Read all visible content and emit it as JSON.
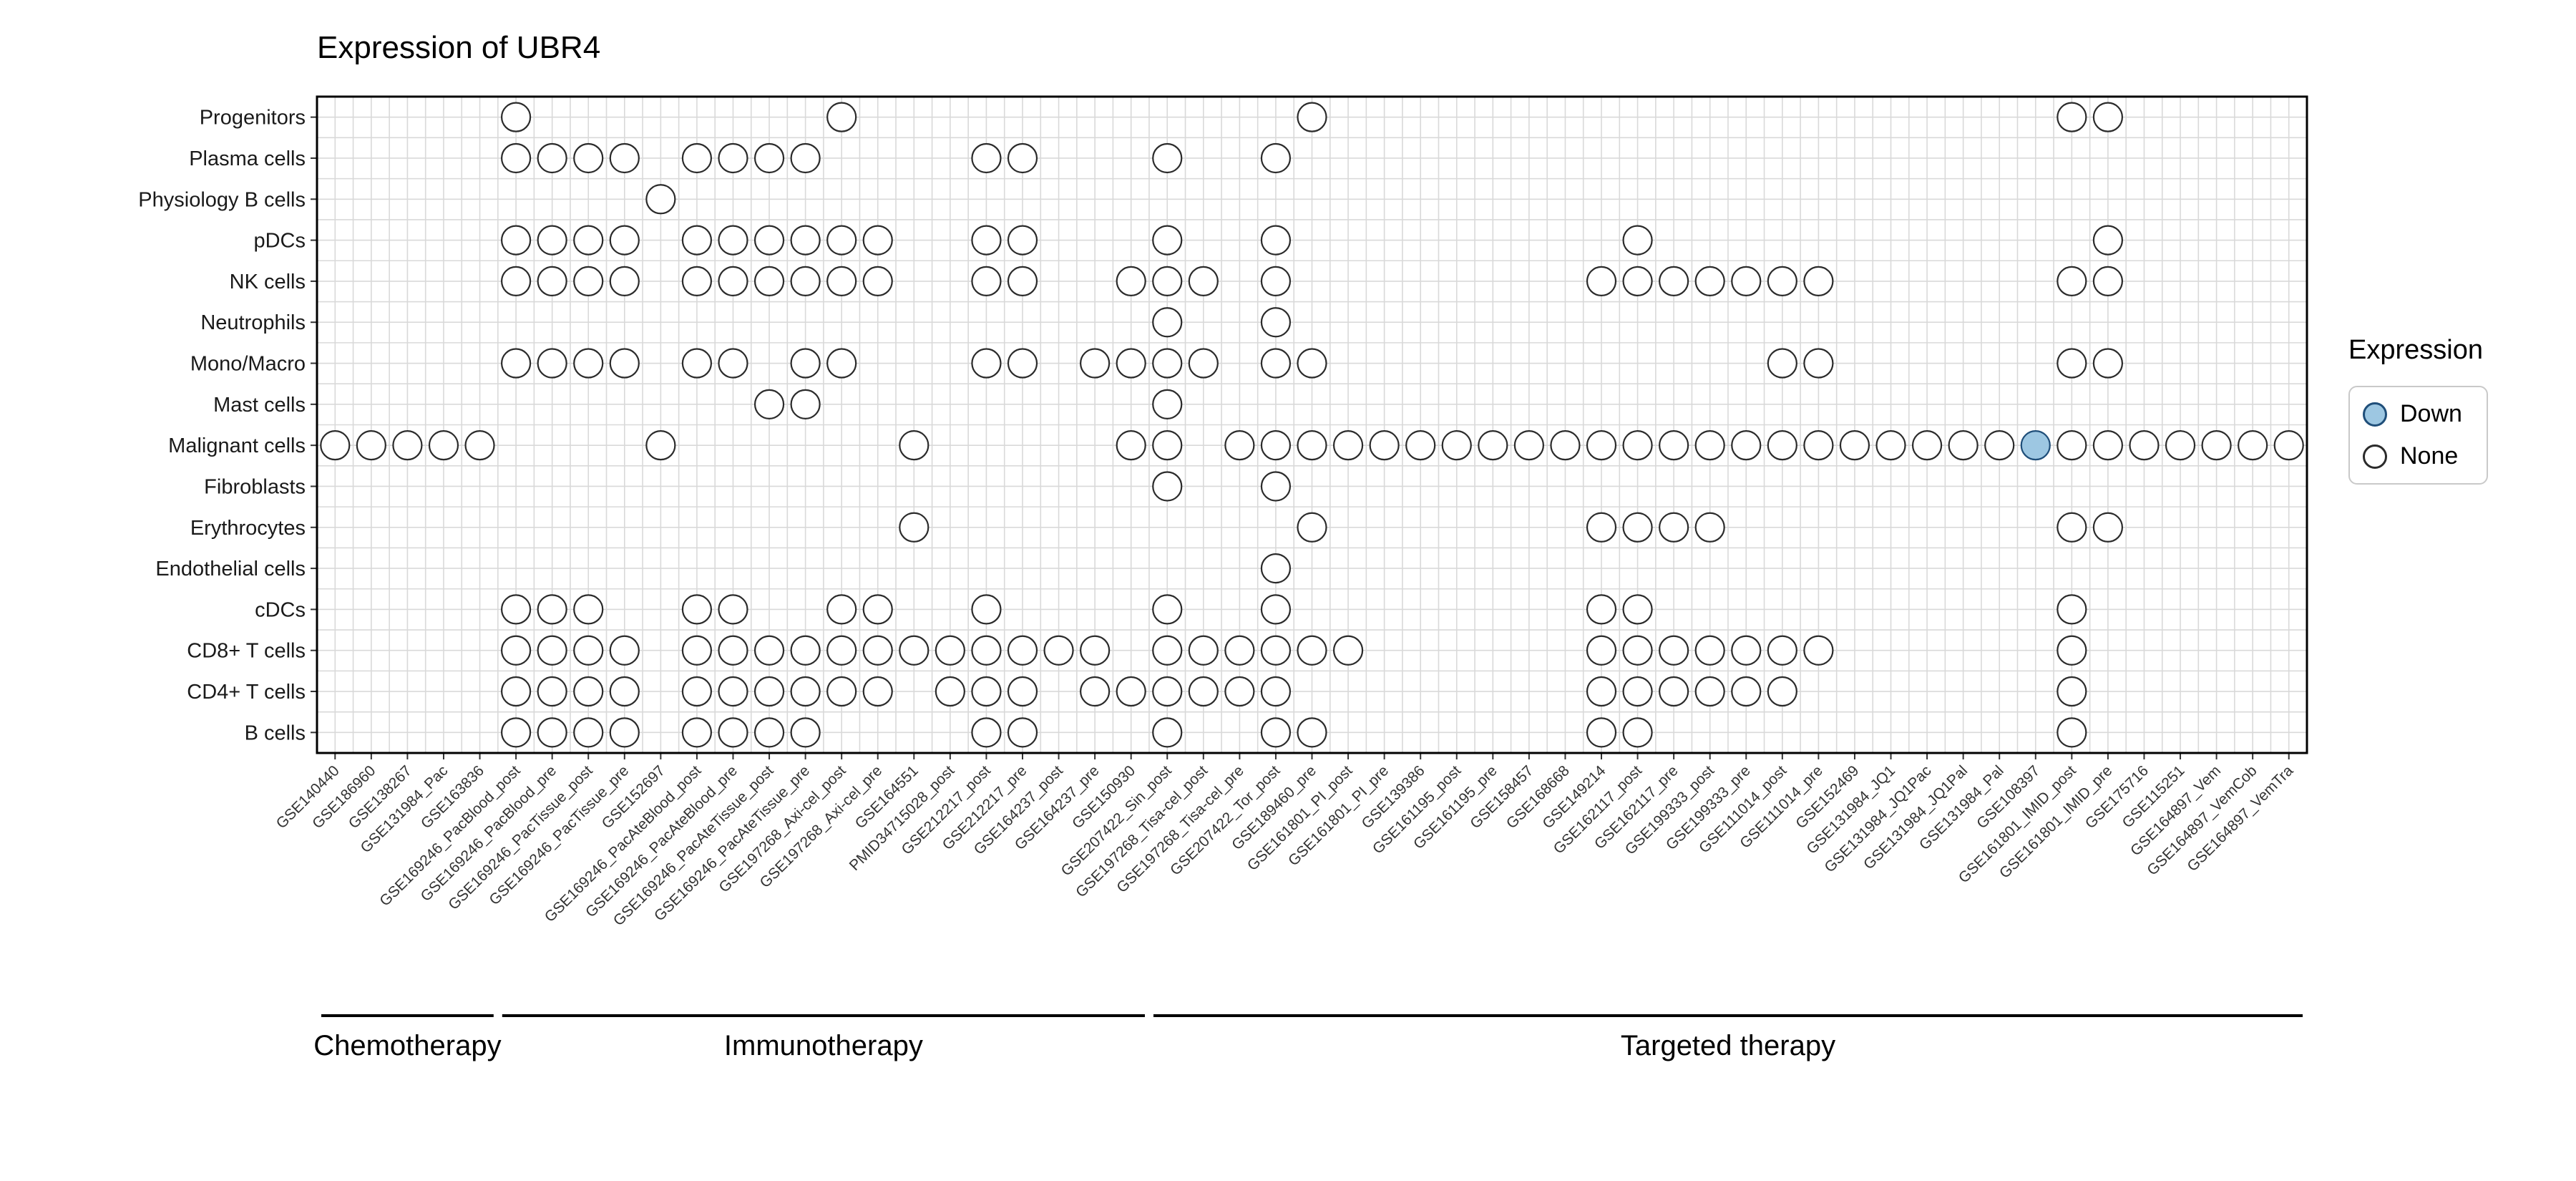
{
  "title": "Expression of UBR4",
  "legend": {
    "title": "Expression",
    "items": [
      {
        "label": "Down",
        "fill": "#9dc7e2",
        "stroke": "#1f4e79"
      },
      {
        "label": "None",
        "fill": "#ffffff",
        "stroke": "#2b2b2b"
      }
    ]
  },
  "chart_data": {
    "type": "scatter",
    "title": "Expression of UBR4",
    "legend_title": "Expression",
    "legend_items": [
      "Down",
      "None"
    ],
    "rows": [
      "Progenitors",
      "Plasma cells",
      "Physiology B cells",
      "pDCs",
      "NK cells",
      "Neutrophils",
      "Mono/Macro",
      "Mast cells",
      "Malignant cells",
      "Fibroblasts",
      "Erythrocytes",
      "Endothelial cells",
      "cDCs",
      "CD8+ T cells",
      "CD4+ T cells",
      "B cells"
    ],
    "columns": [
      "GSE140440",
      "GSE186960",
      "GSE138267",
      "GSE131984_Pac",
      "GSE163836",
      "GSE169246_PacBlood_post",
      "GSE169246_PacBlood_pre",
      "GSE169246_PacTissue_post",
      "GSE169246_PacTissue_pre",
      "GSE152697",
      "GSE169246_PacAteBlood_post",
      "GSE169246_PacAteBlood_pre",
      "GSE169246_PacAteTissue_post",
      "GSE169246_PacAteTissue_pre",
      "GSE197268_Axi-cel_post",
      "GSE197268_Axi-cel_pre",
      "GSE164551",
      "PMID34715028_post",
      "GSE212217_post",
      "GSE212217_pre",
      "GSE164237_post",
      "GSE164237_pre",
      "GSE150930",
      "GSE207422_Sin_post",
      "GSE197268_Tisa-cel_post",
      "GSE197268_Tisa-cel_pre",
      "GSE207422_Tor_post",
      "GSE189460_pre",
      "GSE161801_PI_post",
      "GSE161801_PI_pre",
      "GSE139386",
      "GSE161195_post",
      "GSE161195_pre",
      "GSE158457",
      "GSE168668",
      "GSE149214",
      "GSE162117_post",
      "GSE162117_pre",
      "GSE199333_post",
      "GSE199333_pre",
      "GSE111014_post",
      "GSE111014_pre",
      "GSE152469",
      "GSE131984_JQ1",
      "GSE131984_JQ1Pac",
      "GSE131984_JQ1Pal",
      "GSE131984_Pal",
      "GSE108397",
      "GSE161801_IMID_post",
      "GSE161801_IMID_pre",
      "GSE175716",
      "GSE115251",
      "GSE164897_Vem",
      "GSE164897_VemCob",
      "GSE164897_VemTra"
    ],
    "groups": [
      {
        "label": "Chemotherapy",
        "start": 1,
        "end": 5
      },
      {
        "label": "Immunotherapy",
        "start": 6,
        "end": 23
      },
      {
        "label": "Targeted therapy",
        "start": 24,
        "end": 55
      }
    ],
    "points": [
      {
        "row": "Progenitors",
        "columns": [
          6,
          15,
          28,
          49,
          50
        ]
      },
      {
        "row": "Plasma cells",
        "columns": [
          6,
          7,
          8,
          9,
          11,
          12,
          13,
          14,
          19,
          20,
          24,
          27
        ]
      },
      {
        "row": "Physiology B cells",
        "columns": [
          10
        ]
      },
      {
        "row": "pDCs",
        "columns": [
          6,
          7,
          8,
          9,
          11,
          12,
          13,
          14,
          15,
          16,
          19,
          20,
          24,
          27,
          37,
          50
        ]
      },
      {
        "row": "NK cells",
        "columns": [
          6,
          7,
          8,
          9,
          11,
          12,
          13,
          14,
          15,
          16,
          19,
          20,
          23,
          24,
          25,
          27,
          36,
          37,
          38,
          39,
          40,
          41,
          42,
          49,
          50
        ]
      },
      {
        "row": "Neutrophils",
        "columns": [
          24,
          27
        ]
      },
      {
        "row": "Mono/Macro",
        "columns": [
          6,
          7,
          8,
          9,
          11,
          12,
          14,
          15,
          19,
          20,
          22,
          23,
          24,
          25,
          27,
          28,
          41,
          42,
          49,
          50
        ]
      },
      {
        "row": "Mast cells",
        "columns": [
          13,
          14,
          24
        ]
      },
      {
        "row": "Malignant cells",
        "columns": [
          1,
          2,
          3,
          4,
          5,
          10,
          17,
          23,
          24,
          26,
          27,
          28,
          29,
          30,
          31,
          32,
          33,
          34,
          35,
          36,
          37,
          38,
          39,
          40,
          41,
          42,
          43,
          44,
          45,
          46,
          47,
          48,
          49,
          50,
          51,
          52,
          53,
          54,
          55
        ]
      },
      {
        "row": "Fibroblasts",
        "columns": [
          24,
          27
        ]
      },
      {
        "row": "Erythrocytes",
        "columns": [
          17,
          28,
          36,
          37,
          38,
          39,
          49,
          50
        ]
      },
      {
        "row": "Endothelial cells",
        "columns": [
          27
        ]
      },
      {
        "row": "cDCs",
        "columns": [
          6,
          7,
          8,
          11,
          12,
          15,
          16,
          19,
          24,
          27,
          36,
          37,
          49
        ]
      },
      {
        "row": "CD8+ T cells",
        "columns": [
          6,
          7,
          8,
          9,
          11,
          12,
          13,
          14,
          15,
          16,
          17,
          18,
          19,
          20,
          21,
          22,
          24,
          25,
          26,
          27,
          28,
          29,
          36,
          37,
          38,
          39,
          40,
          41,
          42,
          49
        ]
      },
      {
        "row": "CD4+ T cells",
        "columns": [
          6,
          7,
          8,
          9,
          11,
          12,
          13,
          14,
          15,
          16,
          18,
          19,
          20,
          22,
          23,
          24,
          25,
          26,
          27,
          36,
          37,
          38,
          39,
          40,
          41,
          49
        ]
      },
      {
        "row": "B cells",
        "columns": [
          6,
          7,
          8,
          9,
          11,
          12,
          13,
          14,
          19,
          20,
          24,
          27,
          28,
          36,
          37,
          49
        ]
      }
    ],
    "down": [
      {
        "row": "Malignant cells",
        "column": 48
      }
    ],
    "colors": {
      "none_fill": "#ffffff",
      "dot_stroke": "#2b2b2b",
      "down_fill": "#9dc7e2",
      "down_stroke": "#1f4e79",
      "grid": "#d9d9d9",
      "border": "#000000",
      "tick": "#333333",
      "x_label": "#333333",
      "y_label": "#1a1a1a"
    },
    "layout": {
      "grid": "minor+major",
      "legend_position": "right",
      "x_label_rotation": -45
    }
  }
}
